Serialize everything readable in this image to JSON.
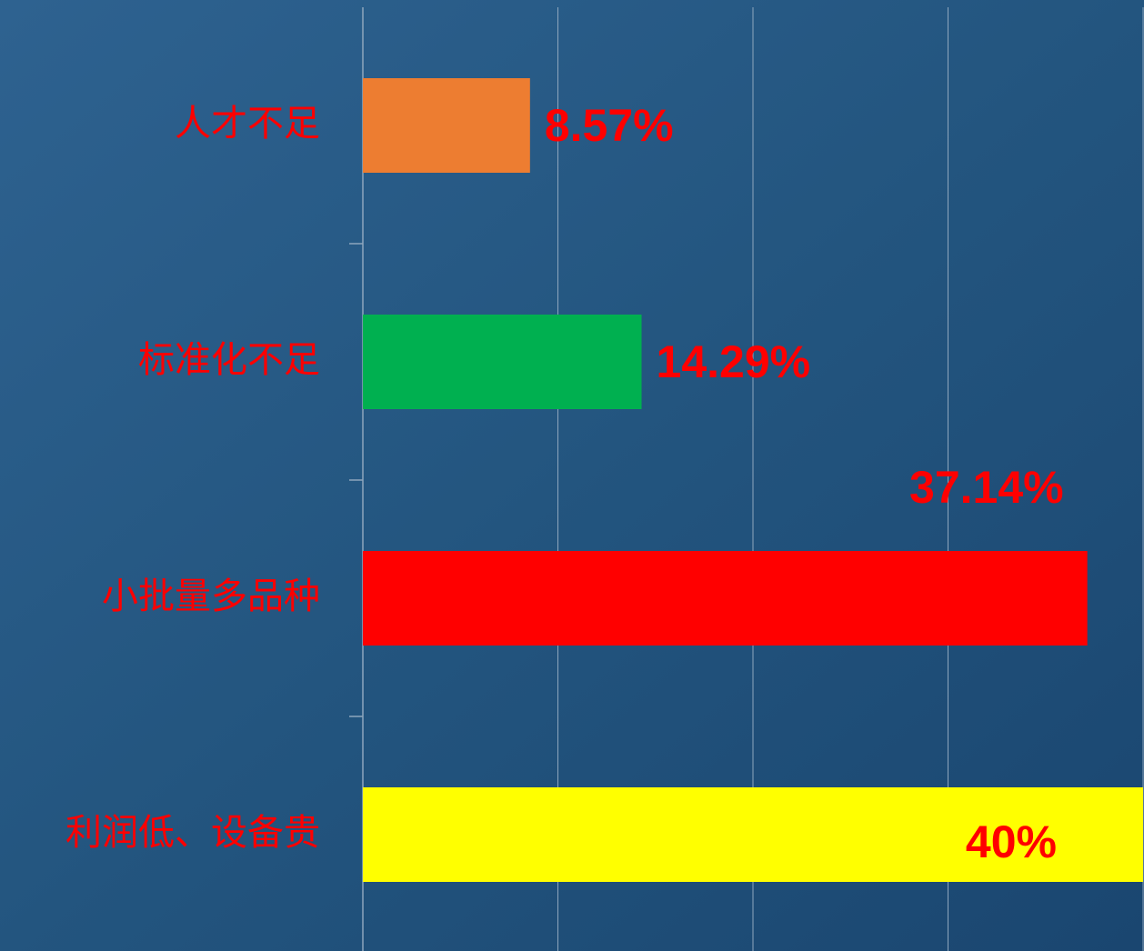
{
  "chart_data": {
    "type": "barh",
    "categories": [
      "人才不足",
      "标准化不足",
      "小批量多品种",
      "利润低、设备贵"
    ],
    "values": [
      8.57,
      14.29,
      37.14,
      40
    ],
    "value_labels": [
      "8.57%",
      "14.29%",
      "37.14%",
      "40%"
    ],
    "colors": [
      "#ed7d31",
      "#00b050",
      "#ff0000",
      "#ffff00"
    ],
    "xlim": [
      0,
      40
    ],
    "xticks": [
      0,
      10,
      20,
      30,
      40
    ],
    "grid": true
  }
}
